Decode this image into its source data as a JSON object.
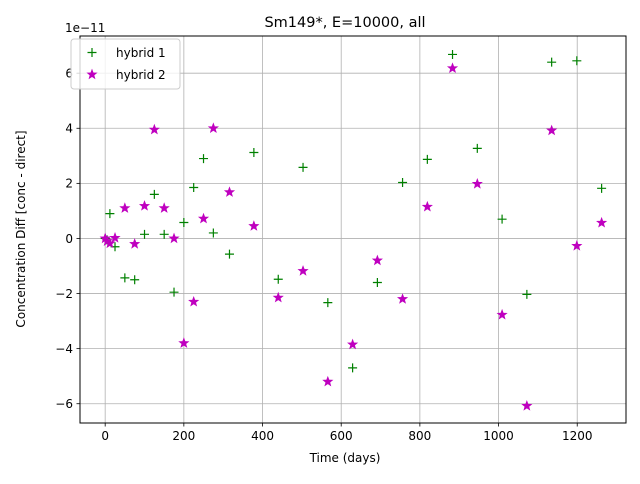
{
  "chart_data": {
    "type": "scatter",
    "title": "Sm149*, E=10000, all",
    "xlabel": "Time (days)",
    "ylabel": "Concentration Diff [conc - direct]",
    "y_scale_label": "1e−11",
    "xlim": [
      -64,
      1324
    ],
    "ylim": [
      -6.7,
      7.35
    ],
    "xticks": [
      0,
      200,
      400,
      600,
      800,
      1000,
      1200
    ],
    "xtick_labels": [
      "0",
      "200",
      "400",
      "600",
      "800",
      "1000",
      "1200"
    ],
    "yticks": [
      -6,
      -4,
      -2,
      0,
      2,
      4,
      6
    ],
    "ytick_labels": [
      "−6",
      "−4",
      "−2",
      "0",
      "2",
      "4",
      "6"
    ],
    "grid": true,
    "legend_position": "upper-left",
    "series": [
      {
        "name": "hybrid 1",
        "marker": "plus",
        "color": "#008000",
        "x": [
          0,
          5,
          12,
          25,
          50,
          75,
          100,
          125,
          150,
          175,
          200,
          225,
          250,
          275,
          316,
          378,
          440,
          503,
          566,
          629,
          692,
          756,
          819,
          883,
          946,
          1009,
          1072,
          1135,
          1199,
          1262
        ],
        "y": [
          0.0,
          -0.05,
          0.9,
          -0.3,
          -1.43,
          -1.5,
          0.15,
          1.6,
          0.15,
          -1.95,
          0.58,
          1.85,
          2.9,
          0.2,
          -0.57,
          3.12,
          -1.48,
          2.58,
          -2.33,
          -4.7,
          -1.6,
          2.03,
          2.87,
          6.68,
          3.27,
          0.7,
          -2.03,
          6.4,
          6.45,
          1.82
        ]
      },
      {
        "name": "hybrid 2",
        "marker": "star",
        "color": "#bf00bf",
        "x": [
          0,
          5,
          12,
          25,
          50,
          75,
          100,
          125,
          150,
          175,
          200,
          225,
          250,
          275,
          316,
          378,
          440,
          503,
          566,
          629,
          692,
          756,
          819,
          883,
          946,
          1009,
          1072,
          1135,
          1199,
          1262
        ],
        "y": [
          0.0,
          -0.1,
          -0.18,
          0.02,
          1.1,
          -0.2,
          1.18,
          3.95,
          1.1,
          0.0,
          -3.8,
          -2.3,
          0.72,
          4.0,
          1.68,
          0.45,
          -2.15,
          -1.18,
          -5.2,
          -3.85,
          -0.8,
          -2.2,
          1.15,
          6.18,
          1.98,
          -2.77,
          -6.08,
          3.92,
          -0.27,
          0.57
        ]
      }
    ]
  }
}
